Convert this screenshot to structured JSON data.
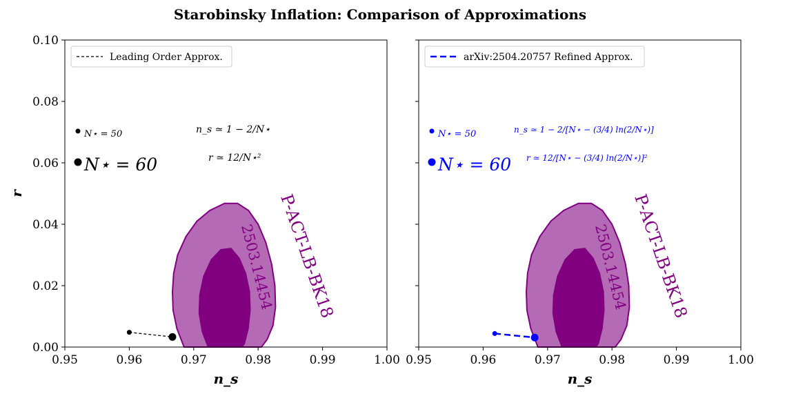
{
  "figure": {
    "title": "Starobinsky Inflation: Comparison of Approximations"
  },
  "colors": {
    "contour_outer": "#b46ab4",
    "contour_inner": "#800080",
    "contour_edge": "#800080",
    "leading_order": "#000000",
    "refined": "#0000ff"
  },
  "chart_data": [
    {
      "type": "scatter",
      "panel": "left",
      "xlabel": "n_s",
      "ylabel": "r",
      "xlim": [
        0.95,
        1.0
      ],
      "ylim": [
        0.0,
        0.1
      ],
      "xticks": [
        "0.95",
        "0.96",
        "0.97",
        "0.98",
        "0.99",
        "1.00"
      ],
      "yticks": [
        "0.00",
        "0.02",
        "0.04",
        "0.06",
        "0.08",
        "0.10"
      ],
      "legend": {
        "label": "Leading Order Approx.",
        "placement": "top-left",
        "style": "dashed"
      },
      "series": [
        {
          "name": "Leading Order Approx.",
          "color": "#000000",
          "points": [
            {
              "label": "N⋆ = 50",
              "x": 0.96,
              "y": 0.0048
            },
            {
              "label": "N⋆ = 60",
              "x": 0.9667,
              "y": 0.0033
            }
          ]
        }
      ],
      "marker_key": [
        {
          "text": "N⋆ = 50",
          "size": "small"
        },
        {
          "text": "N⋆ = 60",
          "size": "large"
        }
      ],
      "formulas": [
        "n_s ≃ 1 − 2/N⋆",
        "r ≃ 12/N⋆²"
      ],
      "contours": {
        "label": "P-ACT-LB-BK18",
        "sublabel": "2503.14454",
        "outer": [
          [
            0.9685,
            0.0
          ],
          [
            0.9674,
            0.006
          ],
          [
            0.9668,
            0.012
          ],
          [
            0.9667,
            0.018
          ],
          [
            0.9669,
            0.024
          ],
          [
            0.9675,
            0.03
          ],
          [
            0.9688,
            0.036
          ],
          [
            0.9705,
            0.041
          ],
          [
            0.9725,
            0.0445
          ],
          [
            0.9748,
            0.0468
          ],
          [
            0.9768,
            0.0468
          ],
          [
            0.9785,
            0.0445
          ],
          [
            0.98,
            0.04
          ],
          [
            0.9812,
            0.034
          ],
          [
            0.9821,
            0.027
          ],
          [
            0.9826,
            0.02
          ],
          [
            0.9827,
            0.013
          ],
          [
            0.9823,
            0.007
          ],
          [
            0.9814,
            0.0025
          ],
          [
            0.9805,
            0.0
          ]
        ],
        "inner": [
          [
            0.9722,
            0.0
          ],
          [
            0.9713,
            0.005
          ],
          [
            0.9708,
            0.011
          ],
          [
            0.9709,
            0.017
          ],
          [
            0.9715,
            0.023
          ],
          [
            0.9727,
            0.0285
          ],
          [
            0.9742,
            0.0318
          ],
          [
            0.9758,
            0.0322
          ],
          [
            0.9771,
            0.029
          ],
          [
            0.9781,
            0.024
          ],
          [
            0.9787,
            0.018
          ],
          [
            0.9788,
            0.012
          ],
          [
            0.9785,
            0.006
          ],
          [
            0.9779,
            0.001
          ],
          [
            0.9775,
            0.0
          ]
        ]
      }
    },
    {
      "type": "scatter",
      "panel": "right",
      "xlabel": "n_s",
      "ylabel": "",
      "xlim": [
        0.95,
        1.0
      ],
      "ylim": [
        0.0,
        0.1
      ],
      "xticks": [
        "0.95",
        "0.96",
        "0.97",
        "0.98",
        "0.99",
        "1.00"
      ],
      "yticks": [],
      "legend": {
        "label": "arXiv:2504.20757 Refined Approx.",
        "placement": "top-left",
        "style": "dashed"
      },
      "series": [
        {
          "name": "arXiv:2504.20757 Refined Approx.",
          "color": "#0000ff",
          "points": [
            {
              "label": "N⋆ = 50",
              "x": 0.9618,
              "y": 0.0044
            },
            {
              "label": "N⋆ = 60",
              "x": 0.968,
              "y": 0.0031
            }
          ]
        }
      ],
      "marker_key": [
        {
          "text": "N⋆ = 50",
          "size": "small"
        },
        {
          "text": "N⋆ = 60",
          "size": "large"
        }
      ],
      "formulas": [
        "n_s ≃ 1 − 2/[N⋆ − (3/4) ln(2/N⋆)]",
        "r ≃ 12/[N⋆ − (3/4) ln(2/N⋆)]²"
      ],
      "contours": {
        "label": "P-ACT-LB-BK18",
        "sublabel": "2503.14454",
        "outer": [
          [
            0.9685,
            0.0
          ],
          [
            0.9674,
            0.006
          ],
          [
            0.9668,
            0.012
          ],
          [
            0.9667,
            0.018
          ],
          [
            0.9669,
            0.024
          ],
          [
            0.9675,
            0.03
          ],
          [
            0.9688,
            0.036
          ],
          [
            0.9705,
            0.041
          ],
          [
            0.9725,
            0.0445
          ],
          [
            0.9748,
            0.0468
          ],
          [
            0.9768,
            0.0468
          ],
          [
            0.9785,
            0.0445
          ],
          [
            0.98,
            0.04
          ],
          [
            0.9812,
            0.034
          ],
          [
            0.9821,
            0.027
          ],
          [
            0.9826,
            0.02
          ],
          [
            0.9827,
            0.013
          ],
          [
            0.9823,
            0.007
          ],
          [
            0.9814,
            0.0025
          ],
          [
            0.9805,
            0.0
          ]
        ],
        "inner": [
          [
            0.9722,
            0.0
          ],
          [
            0.9713,
            0.005
          ],
          [
            0.9708,
            0.011
          ],
          [
            0.9709,
            0.017
          ],
          [
            0.9715,
            0.023
          ],
          [
            0.9727,
            0.0285
          ],
          [
            0.9742,
            0.0318
          ],
          [
            0.9758,
            0.0322
          ],
          [
            0.9771,
            0.029
          ],
          [
            0.9781,
            0.024
          ],
          [
            0.9787,
            0.018
          ],
          [
            0.9788,
            0.012
          ],
          [
            0.9785,
            0.006
          ],
          [
            0.9779,
            0.001
          ],
          [
            0.9775,
            0.0
          ]
        ]
      }
    }
  ]
}
